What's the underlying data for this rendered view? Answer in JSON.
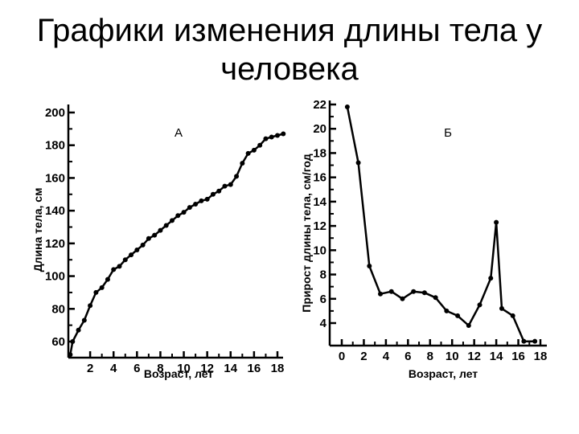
{
  "title": "Графики изменения длины тела у человека",
  "chart_data": [
    {
      "type": "line",
      "panel_label": "А",
      "xlabel": "Возраст, лет",
      "ylabel": "Длина тела, см",
      "xlim": [
        0,
        19
      ],
      "ylim": [
        55,
        205
      ],
      "x_ticks": [
        2,
        4,
        6,
        8,
        10,
        12,
        14,
        16,
        18
      ],
      "y_ticks": [
        60,
        80,
        100,
        120,
        140,
        160,
        180,
        200
      ],
      "grid": false,
      "series": [
        {
          "x": [
            0.3,
            0.5,
            1.0,
            1.5,
            2.0,
            2.5,
            3.0,
            3.5,
            4.0,
            4.5,
            5.0,
            5.5,
            6.0,
            6.5,
            7.0,
            7.5,
            8.0,
            8.5,
            9.0,
            9.5,
            10.0,
            10.5,
            11.0,
            11.5,
            12.0,
            12.5,
            13.0,
            13.5,
            14.0,
            14.5,
            15.0,
            15.5,
            16.0,
            16.5,
            17.0,
            17.5,
            18.0,
            18.5
          ],
          "y": [
            52,
            60,
            67,
            73,
            82,
            90,
            93,
            98,
            104,
            106,
            110,
            113,
            116,
            119,
            123,
            125,
            128,
            131,
            134,
            137,
            139,
            142,
            144,
            146,
            147,
            150,
            152,
            155,
            156,
            161,
            169,
            175,
            177,
            180,
            184,
            185,
            186,
            187
          ]
        }
      ]
    },
    {
      "type": "line",
      "panel_label": "Б",
      "xlabel": "Возраст, лет",
      "ylabel": "Прирост длины тела, см/год",
      "xlim": [
        0,
        18
      ],
      "ylim": [
        2.3,
        22.5
      ],
      "x_ticks": [
        0,
        2,
        4,
        6,
        8,
        10,
        12,
        14,
        16,
        18
      ],
      "y_ticks": [
        4,
        6,
        8,
        10,
        12,
        14,
        16,
        18,
        20,
        22
      ],
      "grid": false,
      "series": [
        {
          "x": [
            0.5,
            1.5,
            2.5,
            3.5,
            4.5,
            5.5,
            6.5,
            7.5,
            8.5,
            9.5,
            10.5,
            11.5,
            12.5,
            13.5,
            14.0,
            14.5,
            15.5,
            16.5,
            17.5
          ],
          "y": [
            21.8,
            17.2,
            8.7,
            6.4,
            6.6,
            6.0,
            6.6,
            6.5,
            6.1,
            5.0,
            4.6,
            3.8,
            5.5,
            7.7,
            12.3,
            5.2,
            4.6,
            2.5,
            2.5
          ]
        }
      ]
    }
  ]
}
